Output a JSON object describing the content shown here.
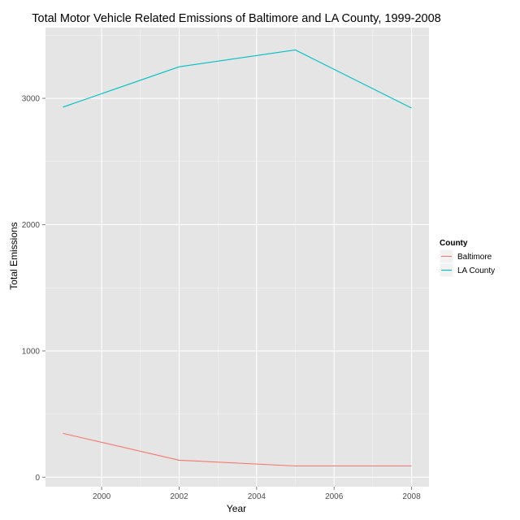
{
  "chart_data": {
    "type": "line",
    "title": "Total Motor Vehicle Related Emissions of Baltimore and LA County, 1999-2008",
    "xlabel": "Year",
    "ylabel": "Total Emissions",
    "x": [
      1999,
      2002,
      2005,
      2008
    ],
    "xlim": [
      1998.55,
      2008.45
    ],
    "ylim": [
      -75,
      3560
    ],
    "x_ticks": [
      2000,
      2002,
      2004,
      2006,
      2008
    ],
    "y_ticks": [
      0,
      1000,
      2000,
      3000
    ],
    "x_tick_labels": [
      "2000",
      "2002",
      "2004",
      "2006",
      "2008"
    ],
    "y_tick_labels": [
      "0",
      "1000",
      "2000",
      "3000"
    ],
    "grid": true,
    "legend_title": "County",
    "legend_position": "right",
    "series": [
      {
        "name": "Baltimore",
        "color": "#F8766D",
        "values": [
          347,
          135,
          89,
          89
        ],
        "x": [
          1999,
          2002,
          2005,
          2008
        ]
      },
      {
        "name": "LA County",
        "color": "#00BFC4",
        "values": [
          2931,
          3250,
          3383,
          2923
        ],
        "x": [
          1999,
          2002,
          2005,
          2008
        ]
      }
    ],
    "panel_background": "#E5E5E5",
    "grid_color": "#FFFFFF"
  }
}
